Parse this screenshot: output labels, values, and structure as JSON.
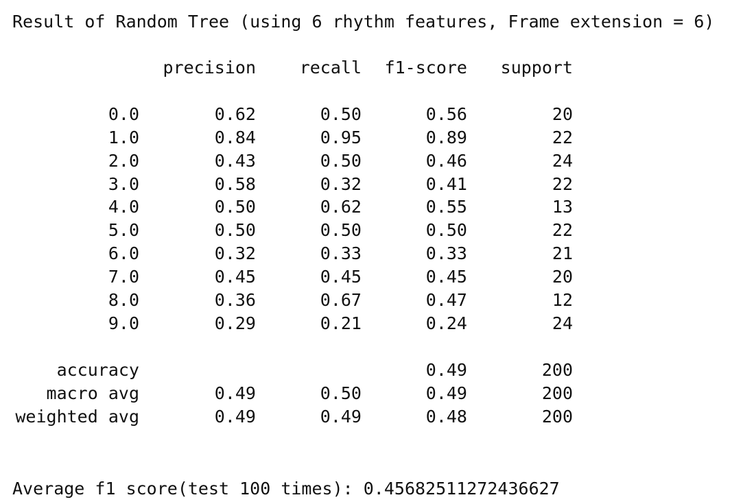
{
  "title": "Result of Random Tree (using 6 rhythm features, Frame extension = 6)",
  "headers": [
    "precision",
    "recall",
    "f1-score",
    "support"
  ],
  "rows": [
    {
      "label": "0.0",
      "precision": "0.62",
      "recall": "0.50",
      "f1": "0.56",
      "support": "20"
    },
    {
      "label": "1.0",
      "precision": "0.84",
      "recall": "0.95",
      "f1": "0.89",
      "support": "22"
    },
    {
      "label": "2.0",
      "precision": "0.43",
      "recall": "0.50",
      "f1": "0.46",
      "support": "24"
    },
    {
      "label": "3.0",
      "precision": "0.58",
      "recall": "0.32",
      "f1": "0.41",
      "support": "22"
    },
    {
      "label": "4.0",
      "precision": "0.50",
      "recall": "0.62",
      "f1": "0.55",
      "support": "13"
    },
    {
      "label": "5.0",
      "precision": "0.50",
      "recall": "0.50",
      "f1": "0.50",
      "support": "22"
    },
    {
      "label": "6.0",
      "precision": "0.32",
      "recall": "0.33",
      "f1": "0.33",
      "support": "21"
    },
    {
      "label": "7.0",
      "precision": "0.45",
      "recall": "0.45",
      "f1": "0.45",
      "support": "20"
    },
    {
      "label": "8.0",
      "precision": "0.36",
      "recall": "0.67",
      "f1": "0.47",
      "support": "12"
    },
    {
      "label": "9.0",
      "precision": "0.29",
      "recall": "0.21",
      "f1": "0.24",
      "support": "24"
    }
  ],
  "summary": [
    {
      "label": "accuracy",
      "precision": "",
      "recall": "",
      "f1": "0.49",
      "support": "200"
    },
    {
      "label": "macro avg",
      "precision": "0.49",
      "recall": "0.50",
      "f1": "0.49",
      "support": "200"
    },
    {
      "label": "weighted avg",
      "precision": "0.49",
      "recall": "0.49",
      "f1": "0.48",
      "support": "200"
    }
  ],
  "footer": "Average f1 score(test 100 times): 0.45682511272436627"
}
